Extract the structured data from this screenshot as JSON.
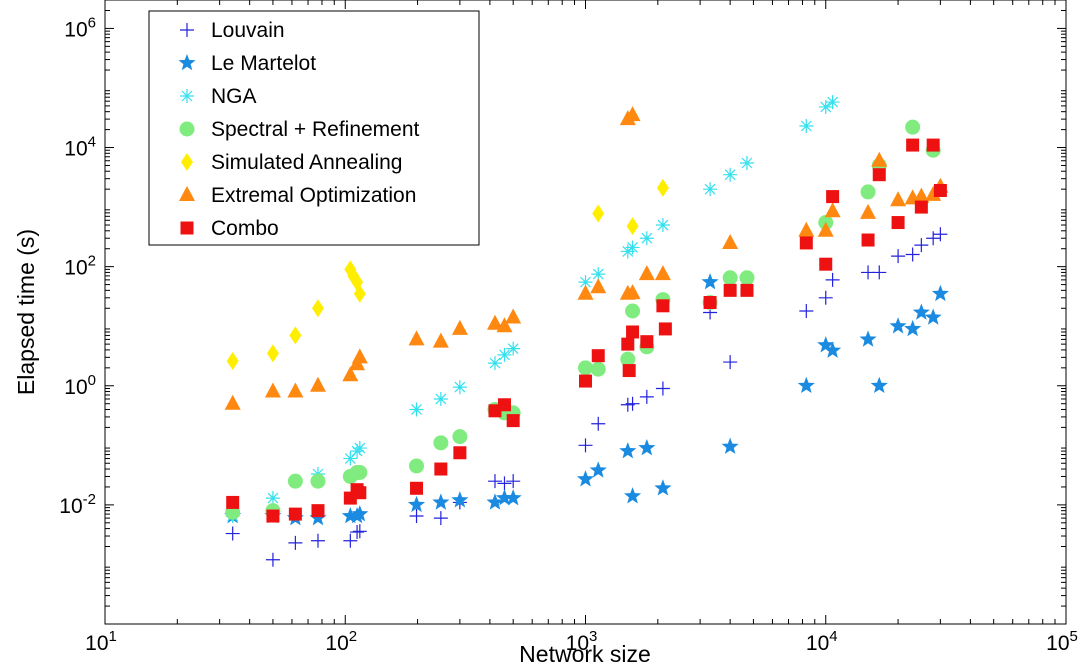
{
  "chart_data": {
    "type": "scatter",
    "title": "",
    "xlabel": "Network size",
    "ylabel": "Elapsed time (s)",
    "xscale": "log",
    "yscale": "log",
    "xlim": [
      10,
      100000
    ],
    "ylim": [
      0.0001,
      3000000
    ],
    "x_ticks": [
      {
        "value": 10,
        "base": "10",
        "exp": "1"
      },
      {
        "value": 100,
        "base": "10",
        "exp": "2"
      },
      {
        "value": 1000,
        "base": "10",
        "exp": "3"
      },
      {
        "value": 10000,
        "base": "10",
        "exp": "4"
      },
      {
        "value": 100000,
        "base": "10",
        "exp": "5"
      }
    ],
    "y_ticks": [
      {
        "value": 0.01,
        "base": "10",
        "exp": "-2"
      },
      {
        "value": 1,
        "base": "10",
        "exp": "0"
      },
      {
        "value": 100,
        "base": "10",
        "exp": "2"
      },
      {
        "value": 10000,
        "base": "10",
        "exp": "4"
      },
      {
        "value": 1000000,
        "base": "10",
        "exp": "6"
      }
    ],
    "grid": false,
    "legend_position": "top-left",
    "series": [
      {
        "name": "Louvain",
        "marker": "plus",
        "color": "#2222dd",
        "points": [
          [
            34,
            0.0033
          ],
          [
            50,
            0.0012
          ],
          [
            62,
            0.0023
          ],
          [
            77,
            0.0025
          ],
          [
            105,
            0.0025
          ],
          [
            112,
            0.0035
          ],
          [
            115,
            0.0036
          ],
          [
            198,
            0.0065
          ],
          [
            250,
            0.006
          ],
          [
            300,
            0.011
          ],
          [
            420,
            0.025
          ],
          [
            460,
            0.023
          ],
          [
            500,
            0.025
          ],
          [
            1000,
            0.1
          ],
          [
            1130,
            0.23
          ],
          [
            1500,
            0.48
          ],
          [
            1570,
            0.5
          ],
          [
            1800,
            0.65
          ],
          [
            2100,
            0.9
          ],
          [
            3300,
            17
          ],
          [
            4000,
            2.5
          ],
          [
            8300,
            18
          ],
          [
            10000,
            30
          ],
          [
            10680,
            60
          ],
          [
            15000,
            80
          ],
          [
            16700,
            80
          ],
          [
            20000,
            150
          ],
          [
            23000,
            160
          ],
          [
            25000,
            230
          ],
          [
            28000,
            300
          ],
          [
            30000,
            350
          ]
        ]
      },
      {
        "name": "Le Martelot",
        "marker": "star",
        "color": "#1a8be0",
        "points": [
          [
            34,
            0.0065
          ],
          [
            50,
            0.0065
          ],
          [
            62,
            0.006
          ],
          [
            77,
            0.006
          ],
          [
            105,
            0.0065
          ],
          [
            112,
            0.0065
          ],
          [
            115,
            0.007
          ],
          [
            198,
            0.01
          ],
          [
            250,
            0.011
          ],
          [
            300,
            0.012
          ],
          [
            420,
            0.011
          ],
          [
            460,
            0.013
          ],
          [
            500,
            0.013
          ],
          [
            1000,
            0.027
          ],
          [
            1130,
            0.038
          ],
          [
            1500,
            0.08
          ],
          [
            1570,
            0.014
          ],
          [
            1800,
            0.09
          ],
          [
            2100,
            0.019
          ],
          [
            3300,
            55
          ],
          [
            4000,
            0.095
          ],
          [
            8300,
            1.0
          ],
          [
            10000,
            4.8
          ],
          [
            10680,
            3.9
          ],
          [
            15000,
            6.0
          ],
          [
            16700,
            1.0
          ],
          [
            20000,
            10
          ],
          [
            23000,
            9.0
          ],
          [
            25000,
            17
          ],
          [
            28000,
            14
          ],
          [
            30000,
            35
          ]
        ]
      },
      {
        "name": "NGA",
        "marker": "asterisk",
        "color": "#33e0ee",
        "points": [
          [
            34,
            0.0065
          ],
          [
            50,
            0.013
          ],
          [
            62,
            0.025
          ],
          [
            77,
            0.033
          ],
          [
            105,
            0.06
          ],
          [
            112,
            0.08
          ],
          [
            115,
            0.09
          ],
          [
            198,
            0.4
          ],
          [
            250,
            0.6
          ],
          [
            300,
            0.95
          ],
          [
            420,
            2.4
          ],
          [
            460,
            3.3
          ],
          [
            500,
            4.2
          ],
          [
            1000,
            55
          ],
          [
            1130,
            75
          ],
          [
            1500,
            180
          ],
          [
            1570,
            210
          ],
          [
            1800,
            300
          ],
          [
            2100,
            500
          ],
          [
            3300,
            2000
          ],
          [
            4000,
            3500
          ],
          [
            4700,
            5500
          ],
          [
            8300,
            23000
          ],
          [
            10000,
            48000
          ],
          [
            10680,
            58000
          ]
        ]
      },
      {
        "name": "Spectral + Refinement",
        "marker": "circle",
        "color": "#80ec80",
        "points": [
          [
            34,
            0.0075
          ],
          [
            50,
            0.008
          ],
          [
            62,
            0.025
          ],
          [
            77,
            0.025
          ],
          [
            105,
            0.03
          ],
          [
            112,
            0.035
          ],
          [
            115,
            0.035
          ],
          [
            198,
            0.045
          ],
          [
            250,
            0.11
          ],
          [
            300,
            0.14
          ],
          [
            420,
            0.4
          ],
          [
            460,
            0.35
          ],
          [
            500,
            0.35
          ],
          [
            1000,
            2.0
          ],
          [
            1130,
            1.9
          ],
          [
            1500,
            2.8
          ],
          [
            1570,
            18
          ],
          [
            1800,
            4.5
          ],
          [
            2100,
            28
          ],
          [
            3300,
            25
          ],
          [
            4000,
            65
          ],
          [
            4700,
            65
          ],
          [
            10000,
            550
          ],
          [
            15000,
            1800
          ],
          [
            16700,
            5000
          ],
          [
            23000,
            22000
          ],
          [
            28000,
            9000
          ]
        ]
      },
      {
        "name": "Simulated Annealing",
        "marker": "diamond",
        "color": "#ffee00",
        "points": [
          [
            34,
            2.6
          ],
          [
            50,
            3.5
          ],
          [
            62,
            7
          ],
          [
            77,
            20
          ],
          [
            105,
            90
          ],
          [
            108,
            70
          ],
          [
            112,
            55
          ],
          [
            115,
            35
          ],
          [
            1130,
            780
          ],
          [
            1570,
            480
          ],
          [
            2100,
            2100
          ]
        ]
      },
      {
        "name": "Extremal Optimization",
        "marker": "triangle",
        "color": "#ff8811",
        "points": [
          [
            34,
            0.5
          ],
          [
            50,
            0.8
          ],
          [
            62,
            0.8
          ],
          [
            77,
            1.0
          ],
          [
            105,
            1.5
          ],
          [
            112,
            2.3
          ],
          [
            115,
            3
          ],
          [
            198,
            6
          ],
          [
            250,
            5.5
          ],
          [
            300,
            9
          ],
          [
            420,
            11
          ],
          [
            460,
            10
          ],
          [
            500,
            14
          ],
          [
            1000,
            35
          ],
          [
            1130,
            45
          ],
          [
            1500,
            30000
          ],
          [
            1570,
            35000
          ],
          [
            1500,
            35
          ],
          [
            1570,
            36
          ],
          [
            1800,
            75
          ],
          [
            2100,
            75
          ],
          [
            4000,
            250
          ],
          [
            8300,
            400
          ],
          [
            10000,
            400
          ],
          [
            10680,
            850
          ],
          [
            15000,
            800
          ],
          [
            16700,
            6000
          ],
          [
            20000,
            1300
          ],
          [
            23000,
            1400
          ],
          [
            25000,
            1500
          ],
          [
            28000,
            1600
          ],
          [
            30000,
            2200
          ]
        ]
      },
      {
        "name": "Combo",
        "marker": "square",
        "color": "#ee1111",
        "points": [
          [
            34,
            0.011
          ],
          [
            50,
            0.0065
          ],
          [
            62,
            0.007
          ],
          [
            77,
            0.008
          ],
          [
            105,
            0.013
          ],
          [
            112,
            0.018
          ],
          [
            115,
            0.016
          ],
          [
            198,
            0.019
          ],
          [
            250,
            0.04
          ],
          [
            300,
            0.075
          ],
          [
            420,
            0.38
          ],
          [
            460,
            0.48
          ],
          [
            500,
            0.26
          ],
          [
            1000,
            1.2
          ],
          [
            1130,
            3.2
          ],
          [
            1500,
            5.0
          ],
          [
            1520,
            1.8
          ],
          [
            1570,
            8.0
          ],
          [
            1800,
            5.5
          ],
          [
            2100,
            22
          ],
          [
            2150,
            9
          ],
          [
            3300,
            25
          ],
          [
            4000,
            40
          ],
          [
            4700,
            40
          ],
          [
            8300,
            250
          ],
          [
            10000,
            110
          ],
          [
            10680,
            1500
          ],
          [
            15000,
            280
          ],
          [
            16700,
            3500
          ],
          [
            20000,
            550
          ],
          [
            23000,
            11000
          ],
          [
            25000,
            1000
          ],
          [
            28000,
            11000
          ],
          [
            30000,
            1900
          ]
        ]
      }
    ]
  }
}
